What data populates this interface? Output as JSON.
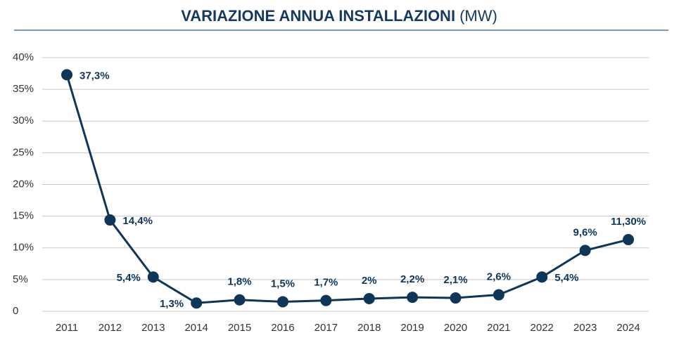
{
  "chart_data": {
    "type": "line",
    "title": "VARIAZIONE ANNUA INSTALLAZIONI",
    "title_unit": "(MW)",
    "categories": [
      "2011",
      "2012",
      "2013",
      "2014",
      "2015",
      "2016",
      "2017",
      "2018",
      "2019",
      "2020",
      "2021",
      "2022",
      "2023",
      "2024"
    ],
    "values": [
      37.3,
      14.4,
      5.4,
      1.3,
      1.8,
      1.5,
      1.7,
      2,
      2.2,
      2.1,
      2.6,
      5.4,
      9.6,
      11.3
    ],
    "value_labels": [
      "37,3%",
      "14,4%",
      "5,4%",
      "1,3%",
      "1,8%",
      "1,5%",
      "1,7%",
      "2%",
      "2,2%",
      "2,1%",
      "2,6%",
      "5,4%",
      "9,6%",
      "11,30%"
    ],
    "color": "#0f3557",
    "ylim": [
      0,
      40
    ],
    "yticks": [
      0,
      {
        "value": 5,
        "label": "5%"
      },
      {
        "value": 10,
        "label": "10%"
      },
      {
        "value": 15,
        "label": "15%"
      },
      {
        "value": 20,
        "label": "20%"
      },
      {
        "value": 25,
        "label": "25%"
      },
      {
        "value": 30,
        "label": "30%"
      },
      {
        "value": 35,
        "label": "35%"
      },
      {
        "value": 40,
        "label": "40%"
      }
    ],
    "grid": true
  }
}
